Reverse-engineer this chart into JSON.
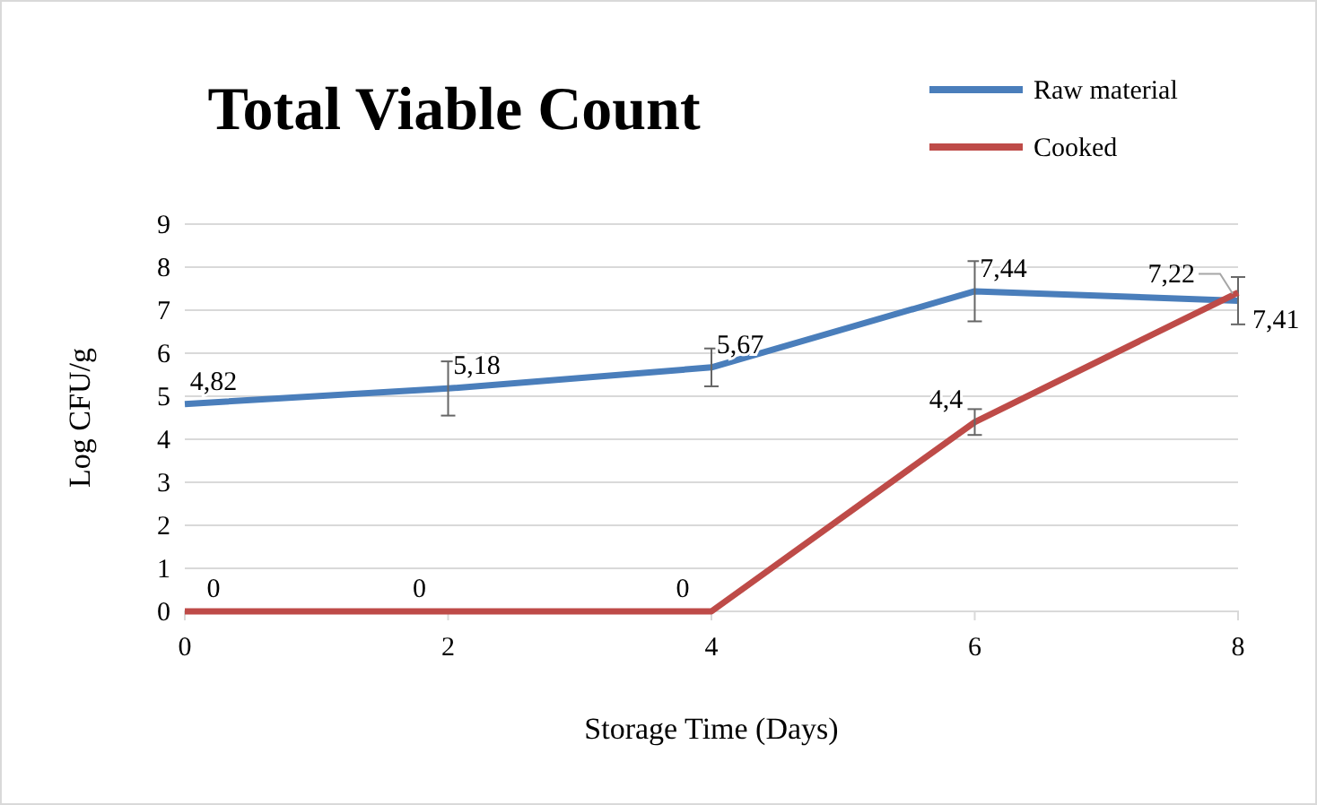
{
  "chart_data": {
    "type": "line",
    "title": "Total Viable Count",
    "xlabel": "Storage Time (Days)",
    "ylabel": "Log CFU/g",
    "x": [
      0,
      2,
      4,
      6,
      8
    ],
    "xlim": [
      0,
      8
    ],
    "xticks": [
      0,
      2,
      4,
      6,
      8
    ],
    "ylim": [
      0,
      9
    ],
    "yticks": [
      0,
      1,
      2,
      3,
      4,
      5,
      6,
      7,
      8,
      9
    ],
    "grid": "y",
    "legend": "top right",
    "marker": "none",
    "line_style": "solid",
    "series": [
      {
        "name": "Raw material",
        "color": "#4a7ebb",
        "values": [
          4.82,
          5.18,
          5.67,
          7.44,
          7.22
        ],
        "value_labels": [
          "4,82",
          "5,18",
          "5,67",
          "7,44",
          "7,22"
        ],
        "errors": [
          null,
          0.63,
          0.44,
          0.7,
          0.55
        ]
      },
      {
        "name": "Cooked",
        "color": "#be4b48",
        "values": [
          0,
          0,
          0,
          4.4,
          7.41
        ],
        "value_labels": [
          "0",
          "0",
          "0",
          "4,4",
          "7,41"
        ],
        "errors": [
          null,
          null,
          null,
          0.3,
          null
        ]
      }
    ]
  }
}
